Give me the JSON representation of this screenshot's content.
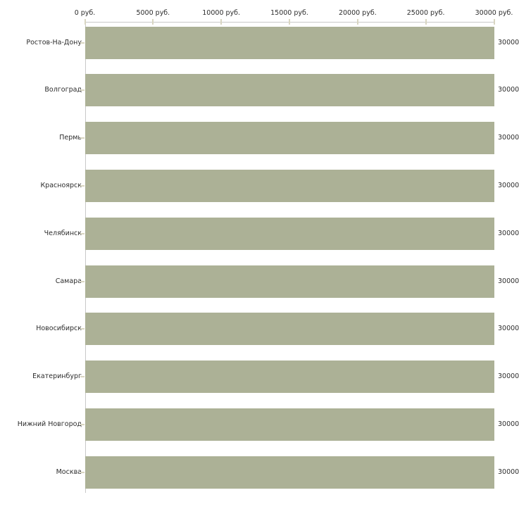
{
  "chart_data": {
    "type": "bar",
    "orientation": "horizontal",
    "title": "",
    "xlabel": "",
    "ylabel": "",
    "categories": [
      "Ростов-На-Дону",
      "Волгоград",
      "Пермь",
      "Красноярск",
      "Челябинск",
      "Самара",
      "Новосибирск",
      "Екатеринбург",
      "Нижний Новгород",
      "Москва"
    ],
    "values": [
      30000,
      30000,
      30000,
      30000,
      30000,
      30000,
      30000,
      30000,
      30000,
      30000
    ],
    "value_labels": [
      "30000",
      "30000",
      "30000",
      "30000",
      "30000",
      "30000",
      "30000",
      "30000",
      "30000",
      "30000"
    ],
    "x_tick_values": [
      0,
      5000,
      10000,
      15000,
      20000,
      25000,
      30000
    ],
    "x_tick_labels": [
      "0 руб.",
      "5000 руб.",
      "10000 руб.",
      "15000 руб.",
      "20000 руб.",
      "25000 руб.",
      "30000 руб."
    ],
    "xlim": [
      0,
      30000
    ],
    "grid": false,
    "legend": null,
    "colors": {
      "bar": "#acb196",
      "axis_line": "#c8c8c8",
      "tick_mark": "#d9d6c2",
      "text": "#2d2d2d",
      "background": "#ffffff"
    }
  }
}
